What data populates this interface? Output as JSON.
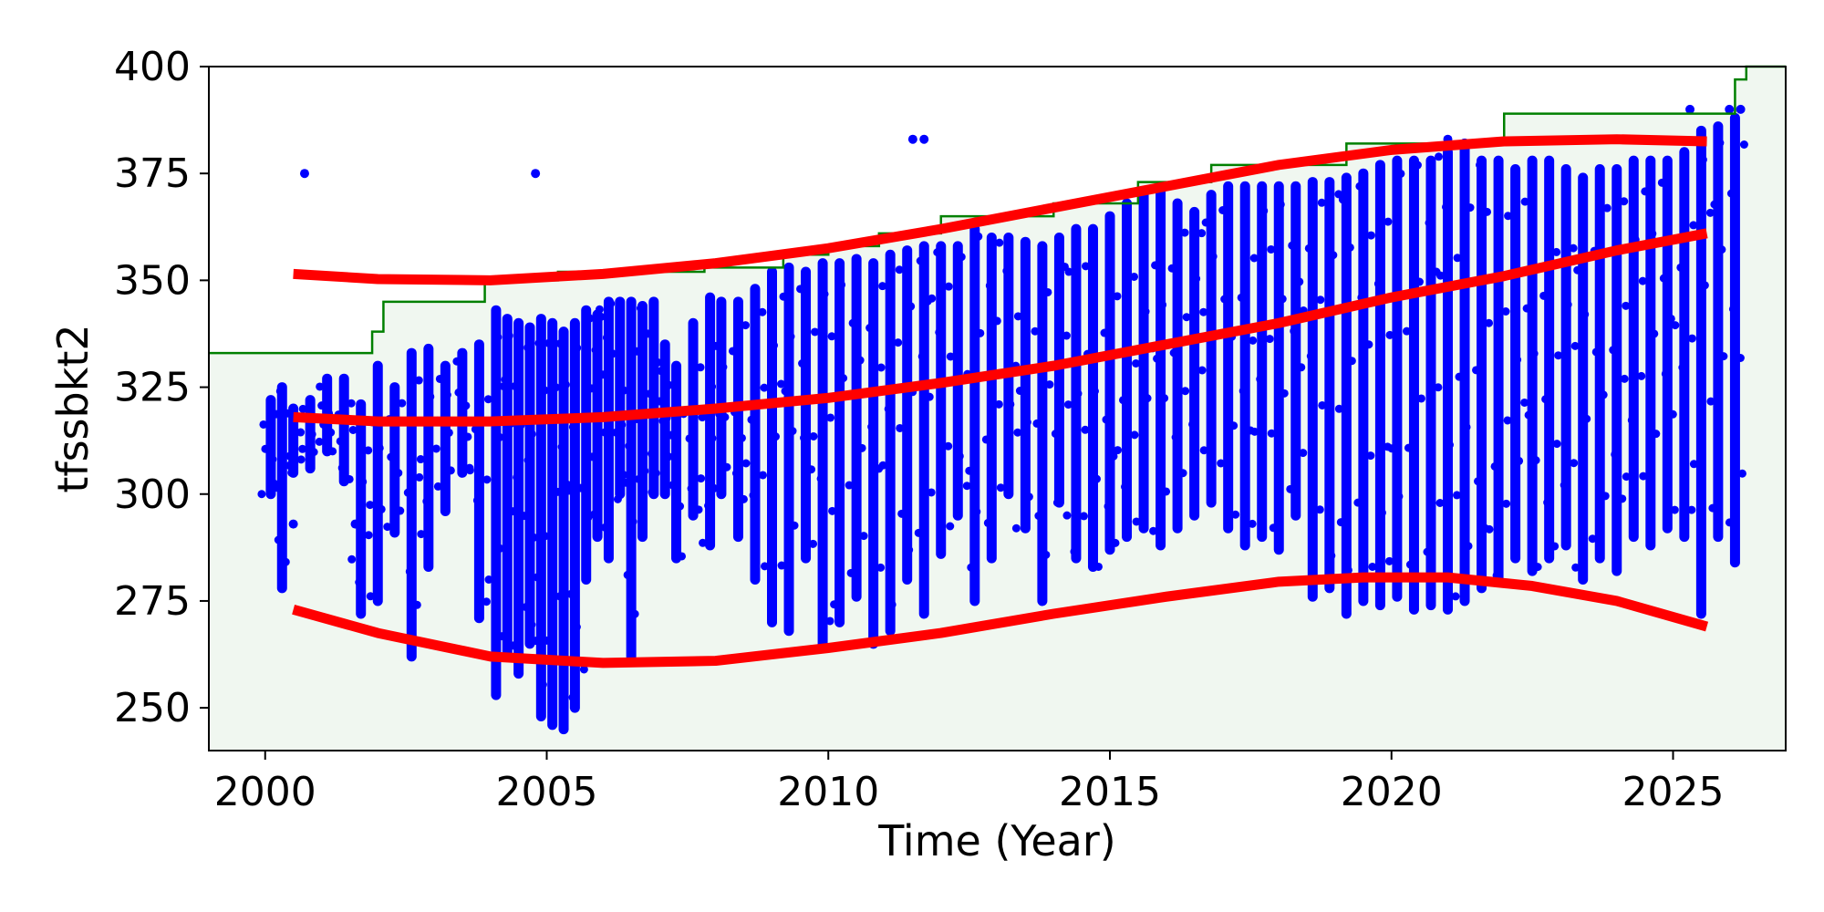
{
  "chart_data": {
    "type": "scatter",
    "title": "",
    "xlabel": "Time (Year)",
    "ylabel": "tfssbkt2",
    "xlim": [
      1999,
      2027
    ],
    "ylim": [
      240,
      400
    ],
    "xticks": [
      2000,
      2005,
      2010,
      2015,
      2020,
      2025
    ],
    "yticks": [
      250,
      275,
      300,
      325,
      350,
      375,
      400
    ],
    "grid": false,
    "legend": "none",
    "colors": {
      "points": "#0000ff",
      "trend_lines": "#ff0000",
      "limit_step": "#008000",
      "limit_region_fill": "#f0f7f0"
    },
    "limit_step": {
      "x": [
        1999,
        2001.9,
        2002.1,
        2003.9,
        2005.2,
        2007.8,
        2009.2,
        2010.0,
        2010.9,
        2012.0,
        2014.0,
        2015.5,
        2016.8,
        2019.2,
        2022.0,
        2026.1,
        2026.3
      ],
      "y": [
        333,
        338,
        345,
        350,
        352,
        353,
        356,
        358,
        361,
        365,
        368,
        373,
        377,
        382,
        389,
        397,
        400
      ]
    },
    "trend_lines": [
      {
        "x": [
          2000.5,
          2002,
          2004,
          2006,
          2008,
          2010,
          2012,
          2014,
          2016,
          2018,
          2020,
          2022,
          2024,
          2025.6
        ],
        "y": [
          351.5,
          350.3,
          350.0,
          351.5,
          354.0,
          357.5,
          362.0,
          367.0,
          372.0,
          377.0,
          380.5,
          382.5,
          383.0,
          382.5
        ]
      },
      {
        "x": [
          2000.5,
          2002,
          2004,
          2006,
          2008,
          2010,
          2012,
          2014,
          2016,
          2018,
          2020,
          2022,
          2024,
          2025.6
        ],
        "y": [
          318,
          317,
          317,
          318,
          320,
          322.5,
          326,
          330,
          335,
          340,
          346,
          351,
          357,
          361
        ]
      },
      {
        "x": [
          2000.5,
          2002,
          2004,
          2006,
          2008,
          2010,
          2012,
          2014,
          2016,
          2018,
          2019.5,
          2021,
          2022.5,
          2024,
          2025.6
        ],
        "y": [
          273,
          267.5,
          262,
          260.5,
          261,
          264,
          267.5,
          272,
          276,
          279.5,
          280.5,
          280.5,
          278.5,
          275,
          269
        ]
      }
    ],
    "scatter_points": [
      [
        2000.7,
        375
      ],
      [
        2004.8,
        375
      ],
      [
        2011.5,
        383
      ],
      [
        2011.7,
        383
      ],
      [
        2021,
        383
      ],
      [
        2025.3,
        390
      ],
      [
        2026,
        390
      ],
      [
        2026.2,
        390
      ],
      [
        2000.5,
        293
      ],
      [
        2001.6,
        293
      ]
    ],
    "scatter_columns": [
      [
        2000.1,
        300,
        322
      ],
      [
        2000.3,
        278,
        325
      ],
      [
        2000.5,
        305,
        320
      ],
      [
        2000.8,
        306,
        322
      ],
      [
        2001.1,
        310,
        327
      ],
      [
        2001.4,
        303,
        327
      ],
      [
        2001.7,
        272,
        321
      ],
      [
        2002.0,
        275,
        330
      ],
      [
        2002.3,
        291,
        325
      ],
      [
        2002.6,
        262,
        333
      ],
      [
        2002.9,
        283,
        334
      ],
      [
        2003.2,
        296,
        330
      ],
      [
        2003.5,
        305,
        333
      ],
      [
        2003.8,
        271,
        335
      ],
      [
        2004.1,
        253,
        343
      ],
      [
        2004.3,
        262,
        341
      ],
      [
        2004.5,
        258,
        340
      ],
      [
        2004.7,
        265,
        339
      ],
      [
        2004.9,
        248,
        341
      ],
      [
        2005.1,
        246,
        340
      ],
      [
        2005.3,
        245,
        338
      ],
      [
        2005.5,
        250,
        340
      ],
      [
        2005.7,
        280,
        343
      ],
      [
        2005.9,
        290,
        342
      ],
      [
        2006.1,
        285,
        345
      ],
      [
        2006.3,
        300,
        345
      ],
      [
        2006.5,
        262,
        345
      ],
      [
        2006.7,
        290,
        344
      ],
      [
        2006.9,
        300,
        345
      ],
      [
        2007.1,
        300,
        335
      ],
      [
        2007.3,
        285,
        330
      ],
      [
        2007.6,
        295,
        340
      ],
      [
        2007.9,
        288,
        346
      ],
      [
        2008.1,
        300,
        345
      ],
      [
        2008.4,
        290,
        345
      ],
      [
        2008.7,
        280,
        348
      ],
      [
        2009.0,
        270,
        352
      ],
      [
        2009.3,
        268,
        353
      ],
      [
        2009.6,
        285,
        352
      ],
      [
        2009.9,
        264,
        354
      ],
      [
        2010.2,
        270,
        354
      ],
      [
        2010.5,
        276,
        355
      ],
      [
        2010.8,
        265,
        354
      ],
      [
        2011.1,
        268,
        356
      ],
      [
        2011.4,
        280,
        357
      ],
      [
        2011.7,
        272,
        358
      ],
      [
        2012.0,
        286,
        358
      ],
      [
        2012.3,
        295,
        358
      ],
      [
        2012.6,
        275,
        362
      ],
      [
        2012.9,
        285,
        360
      ],
      [
        2013.2,
        300,
        360
      ],
      [
        2013.5,
        292,
        359
      ],
      [
        2013.8,
        275,
        358
      ],
      [
        2014.1,
        298,
        360
      ],
      [
        2014.4,
        285,
        362
      ],
      [
        2014.7,
        283,
        362
      ],
      [
        2015.0,
        287,
        365
      ],
      [
        2015.3,
        290,
        368
      ],
      [
        2015.6,
        292,
        370
      ],
      [
        2015.9,
        288,
        372
      ],
      [
        2016.2,
        292,
        368
      ],
      [
        2016.5,
        295,
        366
      ],
      [
        2016.8,
        298,
        370
      ],
      [
        2017.1,
        292,
        372
      ],
      [
        2017.4,
        288,
        372
      ],
      [
        2017.7,
        290,
        372
      ],
      [
        2018.0,
        287,
        372
      ],
      [
        2018.3,
        295,
        372
      ],
      [
        2018.6,
        276,
        373
      ],
      [
        2018.9,
        278,
        373
      ],
      [
        2019.2,
        272,
        374
      ],
      [
        2019.5,
        275,
        375
      ],
      [
        2019.8,
        274,
        377
      ],
      [
        2020.1,
        276,
        378
      ],
      [
        2020.4,
        273,
        378
      ],
      [
        2020.7,
        274,
        378
      ],
      [
        2021.0,
        273,
        380
      ],
      [
        2021.3,
        275,
        382
      ],
      [
        2021.6,
        278,
        378
      ],
      [
        2021.9,
        280,
        378
      ],
      [
        2022.2,
        285,
        376
      ],
      [
        2022.5,
        282,
        378
      ],
      [
        2022.8,
        285,
        378
      ],
      [
        2023.1,
        288,
        376
      ],
      [
        2023.4,
        280,
        374
      ],
      [
        2023.7,
        285,
        376
      ],
      [
        2024.0,
        282,
        376
      ],
      [
        2024.3,
        290,
        378
      ],
      [
        2024.6,
        288,
        378
      ],
      [
        2024.9,
        292,
        378
      ],
      [
        2025.2,
        290,
        380
      ],
      [
        2025.5,
        272,
        385
      ],
      [
        2025.8,
        290,
        386
      ],
      [
        2026.1,
        284,
        388
      ]
    ]
  }
}
